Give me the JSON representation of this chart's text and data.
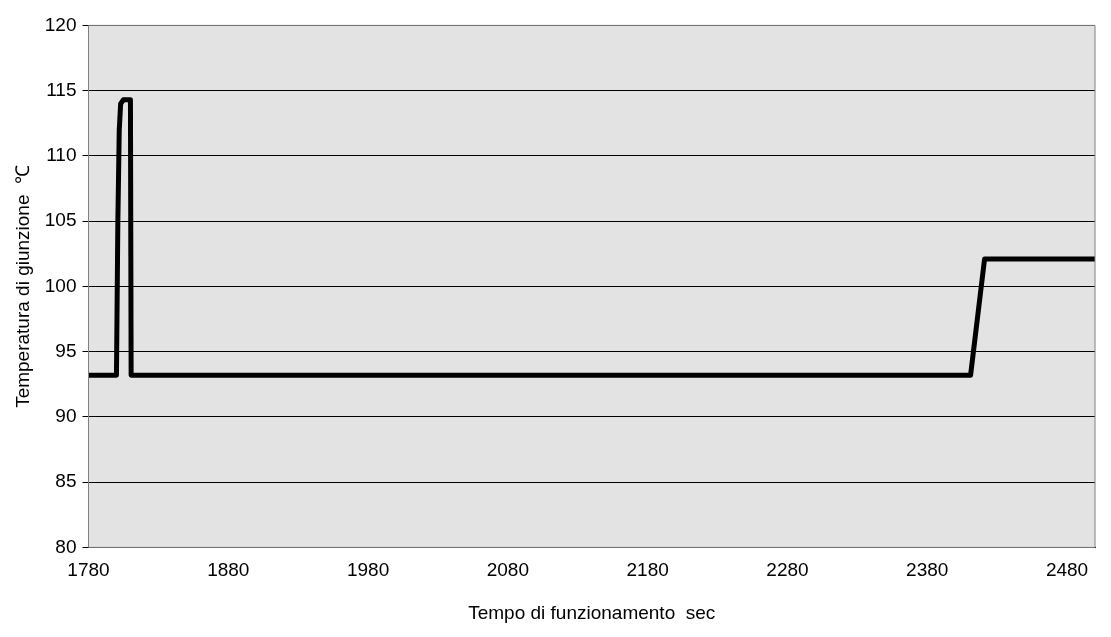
{
  "chart_data": {
    "type": "line",
    "xlabel": "Tempo di funzionamento  sec",
    "ylabel": "Temperatura di giunzione  ℃",
    "x": [
      1780,
      1800,
      1801,
      1802,
      1803,
      1805,
      1810,
      1810.5,
      2411,
      2421,
      2500
    ],
    "series": [
      {
        "color": "#000000",
        "values": [
          93.2,
          93.2,
          105,
          112,
          114,
          114.3,
          114.3,
          93.2,
          93.2,
          102.1,
          102.1
        ]
      }
    ],
    "xlim": [
      1780,
      2500
    ],
    "xticks": [
      1780,
      1880,
      1980,
      2080,
      2180,
      2280,
      2380,
      2480
    ],
    "ylim": [
      80,
      120
    ],
    "yticks": [
      80,
      85,
      90,
      95,
      100,
      105,
      110,
      115,
      120
    ],
    "grid": "y",
    "legend": false,
    "marker": "none",
    "line_style": "solid"
  }
}
